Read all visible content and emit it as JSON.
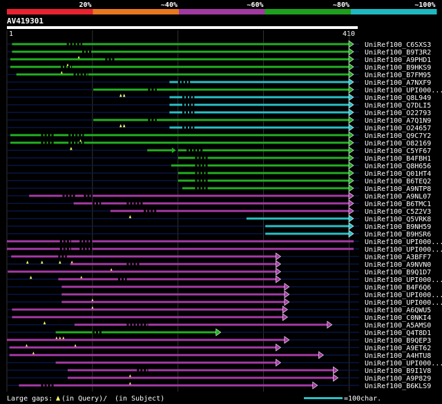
{
  "chart_data": {
    "type": "alignment-overview",
    "query_id": "AV419301",
    "query_start": "1",
    "query_end": "410",
    "query_length": 410,
    "identity_scale": [
      {
        "label": "20%",
        "color": "#e8232f"
      },
      {
        "label": "~40%",
        "color": "#e67820"
      },
      {
        "label": "~60%",
        "color": "#a03aa0"
      },
      {
        "label": "~80%",
        "color": "#1ea01e"
      },
      {
        "label": "~100%",
        "color": "#1fb8c0"
      }
    ],
    "hits": [
      {
        "label": "UniRef100_C6SXS3",
        "start": 6,
        "end": 410,
        "color": "green",
        "qgaps": [],
        "sgaps": [],
        "dashes": [
          [
            70,
            88
          ]
        ]
      },
      {
        "label": "UniRef100_B9T3R2",
        "start": 6,
        "end": 410,
        "color": "green",
        "qgaps": [
          84
        ],
        "sgaps": [],
        "dashes": [
          [
            88,
            100
          ]
        ]
      },
      {
        "label": "UniRef100_A9PHD1",
        "start": 4,
        "end": 410,
        "color": "green",
        "qgaps": [
          71
        ],
        "sgaps": [],
        "dashes": [
          [
            115,
            127
          ]
        ]
      },
      {
        "label": "UniRef100_B9HKS9",
        "start": 4,
        "end": 410,
        "color": "green",
        "qgaps": [
          64
        ],
        "sgaps": [],
        "dashes": [
          [
            63,
            76
          ]
        ]
      },
      {
        "label": "UniRef100_B7FM95",
        "start": 11,
        "end": 410,
        "color": "green",
        "qgaps": [],
        "sgaps": [],
        "dashes": [
          [
            78,
            95
          ]
        ]
      },
      {
        "label": "UniRef100_A7NXF9",
        "start": 190,
        "end": 410,
        "color": "cyan",
        "qgaps": [],
        "sgaps": [],
        "dashes": [
          [
            200,
            214
          ]
        ]
      },
      {
        "label": "UniRef100_UPI000...",
        "start": 101,
        "end": 410,
        "color": "green",
        "qgaps": [
          133,
          137
        ],
        "sgaps": [],
        "dashes": [
          [
            165,
            175
          ]
        ]
      },
      {
        "label": "UniRef100_Q8L949",
        "start": 190,
        "end": 410,
        "color": "cyan",
        "qgaps": [],
        "sgaps": [],
        "dashes": [
          [
            205,
            219
          ]
        ]
      },
      {
        "label": "UniRef100_Q7DLI5",
        "start": 190,
        "end": 410,
        "color": "cyan",
        "qgaps": [],
        "sgaps": [],
        "dashes": [
          [
            205,
            219
          ]
        ]
      },
      {
        "label": "UniRef100_O22793",
        "start": 190,
        "end": 410,
        "color": "cyan",
        "qgaps": [],
        "sgaps": [],
        "dashes": [
          [
            205,
            219
          ]
        ]
      },
      {
        "label": "UniRef100_A7Q1N9",
        "start": 101,
        "end": 410,
        "color": "green",
        "qgaps": [
          133,
          137
        ],
        "sgaps": [],
        "dashes": [
          [
            165,
            175
          ]
        ]
      },
      {
        "label": "UniRef100_O24657",
        "start": 190,
        "end": 420,
        "color": "cyan",
        "qgaps": [],
        "sgaps": [],
        "dashes": [
          [
            205,
            219
          ]
        ]
      },
      {
        "label": "UniRef100_Q9C7Y2",
        "start": 4,
        "end": 420,
        "color": "green",
        "qgaps": [
          86
        ],
        "sgaps": [],
        "dashes": [
          [
            40,
            55
          ],
          [
            72,
            90
          ]
        ]
      },
      {
        "label": "UniRef100_O82169",
        "start": 4,
        "end": 420,
        "color": "green",
        "qgaps": [
          75
        ],
        "sgaps": [],
        "dashes": [
          [
            40,
            55
          ],
          [
            72,
            90
          ]
        ]
      },
      {
        "label": "UniRef100_C5YF67",
        "start": 164,
        "end": 420,
        "color": "green",
        "qgaps": [],
        "sgaps": [],
        "dashes": [
          [
            210,
            230
          ]
        ],
        "break": [
          196,
          200
        ]
      },
      {
        "label": "UniRef100_B4FBH1",
        "start": 200,
        "end": 420,
        "color": "green",
        "qgaps": [],
        "sgaps": [],
        "dashes": [
          [
            220,
            235
          ]
        ]
      },
      {
        "label": "UniRef100_Q8H656",
        "start": 192,
        "end": 420,
        "color": "green",
        "qgaps": [],
        "sgaps": [],
        "dashes": [
          [
            220,
            235
          ]
        ]
      },
      {
        "label": "UniRef100_Q01HT4",
        "start": 200,
        "end": 420,
        "color": "green",
        "qgaps": [],
        "sgaps": [],
        "dashes": [
          [
            220,
            235
          ]
        ]
      },
      {
        "label": "UniRef100_B6TEQ2",
        "start": 200,
        "end": 420,
        "color": "green",
        "qgaps": [],
        "sgaps": [],
        "dashes": [
          [
            220,
            235
          ]
        ]
      },
      {
        "label": "UniRef100_A9NTP8",
        "start": 205,
        "end": 420,
        "color": "green",
        "qgaps": [],
        "sgaps": [],
        "dashes": [
          [
            220,
            235
          ]
        ]
      },
      {
        "label": "UniRef100_A9NL07",
        "start": 26,
        "end": 420,
        "color": "magenta",
        "qgaps": [],
        "sgaps": [],
        "dashes": [
          [
            65,
            80
          ],
          [
            90,
            100
          ]
        ]
      },
      {
        "label": "UniRef100_B6TMC1",
        "start": 78,
        "end": 420,
        "color": "magenta",
        "qgaps": [],
        "sgaps": [],
        "dashes": [
          [
            100,
            110
          ],
          [
            140,
            160
          ]
        ]
      },
      {
        "label": "UniRef100_C5Z2V3",
        "start": 121,
        "end": 420,
        "color": "magenta",
        "qgaps": [
          144
        ],
        "sgaps": [],
        "dashes": [
          [
            160,
            175
          ]
        ]
      },
      {
        "label": "UniRef100_Q5VRK8",
        "start": 280,
        "end": 420,
        "color": "cyan",
        "qgaps": [],
        "sgaps": [],
        "dashes": []
      },
      {
        "label": "UniRef100_B9NH59",
        "start": 302,
        "end": 420,
        "color": "cyan",
        "qgaps": [],
        "sgaps": [],
        "dashes": []
      },
      {
        "label": "UniRef100_B9HSR6",
        "start": 302,
        "end": 420,
        "color": "cyan",
        "qgaps": [],
        "sgaps": [],
        "dashes": []
      },
      {
        "label": "UniRef100_UPI000...",
        "start": 0,
        "end": 410,
        "color": "magenta",
        "qgaps": [],
        "sgaps": [],
        "dashes": [
          [
            62,
            75
          ],
          [
            85,
            100
          ]
        ],
        "nohead": true
      },
      {
        "label": "UniRef100_UPI000...",
        "start": 0,
        "end": 410,
        "color": "magenta",
        "qgaps": [],
        "sgaps": [],
        "dashes": [
          [
            62,
            75
          ],
          [
            85,
            100
          ]
        ],
        "nohead": true
      },
      {
        "label": "UniRef100_A3BFF7",
        "start": 5,
        "end": 320,
        "color": "magenta",
        "qgaps": [
          24,
          41,
          62,
          76
        ],
        "sgaps": [],
        "dashes": [
          [
            60,
            70
          ]
        ]
      },
      {
        "label": "UniRef100_A9NVN0",
        "start": 74,
        "end": 320,
        "color": "magenta",
        "qgaps": [
          122
        ],
        "sgaps": [],
        "dashes": [
          [
            140,
            155
          ]
        ]
      },
      {
        "label": "UniRef100_B9Q1D7",
        "start": 1,
        "end": 320,
        "color": "magenta",
        "qgaps": [
          28,
          87
        ],
        "sgaps": [],
        "dashes": []
      },
      {
        "label": "UniRef100_UPI000...",
        "start": 60,
        "end": 320,
        "color": "magenta",
        "qgaps": [],
        "sgaps": [],
        "dashes": [
          [
            130,
            140
          ]
        ]
      },
      {
        "label": "UniRef100_B4F6Q6",
        "start": 64,
        "end": 330,
        "color": "magenta",
        "qgaps": [],
        "sgaps": [],
        "dashes": []
      },
      {
        "label": "UniRef100_UPI000...",
        "start": 64,
        "end": 330,
        "color": "magenta",
        "qgaps": [
          100
        ],
        "sgaps": [],
        "dashes": []
      },
      {
        "label": "UniRef100_UPI000...",
        "start": 64,
        "end": 330,
        "color": "magenta",
        "qgaps": [
          100
        ],
        "sgaps": [],
        "dashes": []
      },
      {
        "label": "UniRef100_A6QWU5",
        "start": 6,
        "end": 328,
        "color": "magenta",
        "qgaps": [],
        "sgaps": [],
        "dashes": []
      },
      {
        "label": "UniRef100_C0NKI4",
        "start": 6,
        "end": 328,
        "color": "magenta",
        "qgaps": [
          44
        ],
        "sgaps": [],
        "dashes": []
      },
      {
        "label": "UniRef100_A5AMS0",
        "start": 79,
        "end": 380,
        "color": "magenta",
        "qgaps": [],
        "sgaps": [],
        "dashes": [
          [
            140,
            165
          ]
        ]
      },
      {
        "label": "UniRef100_Q4T8D1",
        "start": 57,
        "end": 250,
        "color": "green",
        "qgaps": [
          58,
          62,
          66
        ],
        "sgaps": [],
        "dashes": [
          [
            100,
            112
          ]
        ]
      },
      {
        "label": "UniRef100_B9QEP3",
        "start": 0,
        "end": 330,
        "color": "magenta",
        "qgaps": [
          23,
          80
        ],
        "sgaps": [],
        "dashes": []
      },
      {
        "label": "UniRef100_A9ET62",
        "start": 3,
        "end": 320,
        "color": "magenta",
        "qgaps": [
          31
        ],
        "sgaps": [],
        "dashes": []
      },
      {
        "label": "UniRef100_A4HTU8",
        "start": 3,
        "end": 370,
        "color": "magenta",
        "qgaps": [],
        "sgaps": [],
        "dashes": []
      },
      {
        "label": "UniRef100_UPI000...",
        "start": 57,
        "end": 320,
        "color": "magenta",
        "qgaps": [],
        "sgaps": [],
        "dashes": []
      },
      {
        "label": "UniRef100_B9I1V8",
        "start": 71,
        "end": 387,
        "color": "magenta",
        "qgaps": [
          144
        ],
        "sgaps": [],
        "dashes": [
          [
            152,
            165
          ]
        ]
      },
      {
        "label": "UniRef100_A9P829",
        "start": 71,
        "end": 387,
        "color": "magenta",
        "qgaps": [
          144
        ],
        "sgaps": [],
        "dashes": []
      },
      {
        "label": "UniRef100_B6KLS9",
        "start": 14,
        "end": 363,
        "color": "magenta",
        "qgaps": [],
        "sgaps": [],
        "dashes": [
          [
            40,
            55
          ]
        ]
      }
    ],
    "legend_left": "Large gaps:",
    "legend_q": "(in Query)/",
    "legend_s": "(in Subject)",
    "scale_label": "=100char."
  },
  "colors": {
    "green": "#22b022",
    "cyan": "#27c2c8",
    "magenta": "#a63aa8",
    "background": "#000000",
    "guide": "#0a1a55",
    "grid": "#555555"
  }
}
